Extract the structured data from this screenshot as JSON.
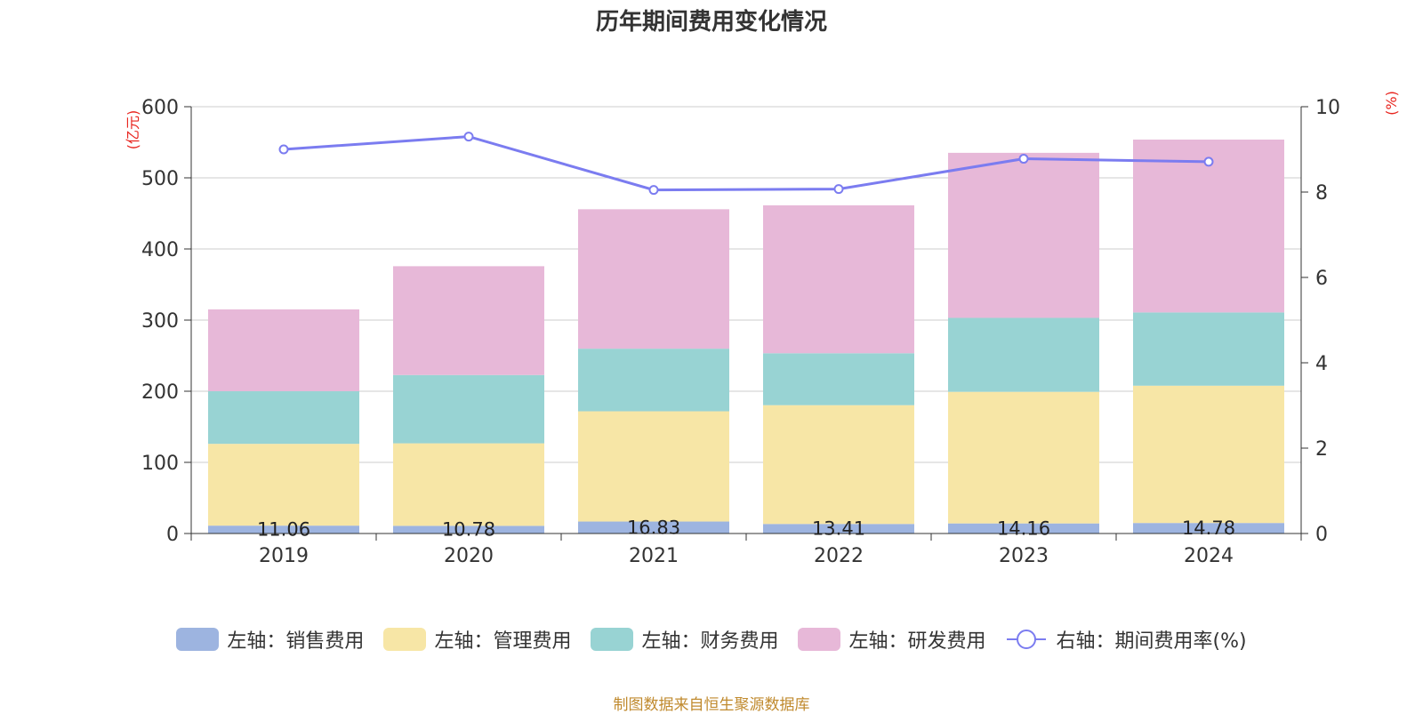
{
  "chart_data": {
    "type": "bar",
    "stacked": true,
    "title": "历年期间费用变化情况",
    "categories": [
      "2019",
      "2020",
      "2021",
      "2022",
      "2023",
      "2024"
    ],
    "y_left": {
      "label": "(亿元)",
      "ylim": [
        0,
        600
      ],
      "ticks": [
        0,
        100,
        200,
        300,
        400,
        500,
        600
      ]
    },
    "y_right": {
      "label": "(%)",
      "ylim": [
        0,
        10
      ],
      "ticks": [
        0,
        2,
        4,
        6,
        8,
        10
      ]
    },
    "series": [
      {
        "name": "左轴：销售费用",
        "axis": "left",
        "type": "bar",
        "color": "#9db4e0",
        "values": [
          11.06,
          10.78,
          16.83,
          13.41,
          14.16,
          14.78
        ],
        "labels": [
          "11.06",
          "10.78",
          "16.83",
          "13.41",
          "14.16",
          "14.78"
        ]
      },
      {
        "name": "左轴：管理费用",
        "axis": "left",
        "type": "bar",
        "color": "#f7e6a6",
        "values": [
          115,
          116,
          155,
          167,
          185,
          193
        ]
      },
      {
        "name": "左轴：财务费用",
        "axis": "left",
        "type": "bar",
        "color": "#98d3d3",
        "values": [
          74,
          96,
          88,
          73,
          104,
          103
        ]
      },
      {
        "name": "左轴：研发费用",
        "axis": "left",
        "type": "bar",
        "color": "#e7b8d8",
        "values": [
          115,
          153,
          196,
          208,
          232,
          243
        ]
      },
      {
        "name": "右轴：期间费用率(%)",
        "axis": "right",
        "type": "line",
        "color": "#7b7cf0",
        "values": [
          9.0,
          9.3,
          8.05,
          8.07,
          8.78,
          8.71
        ]
      }
    ]
  },
  "source": "制图数据来自恒生聚源数据库"
}
